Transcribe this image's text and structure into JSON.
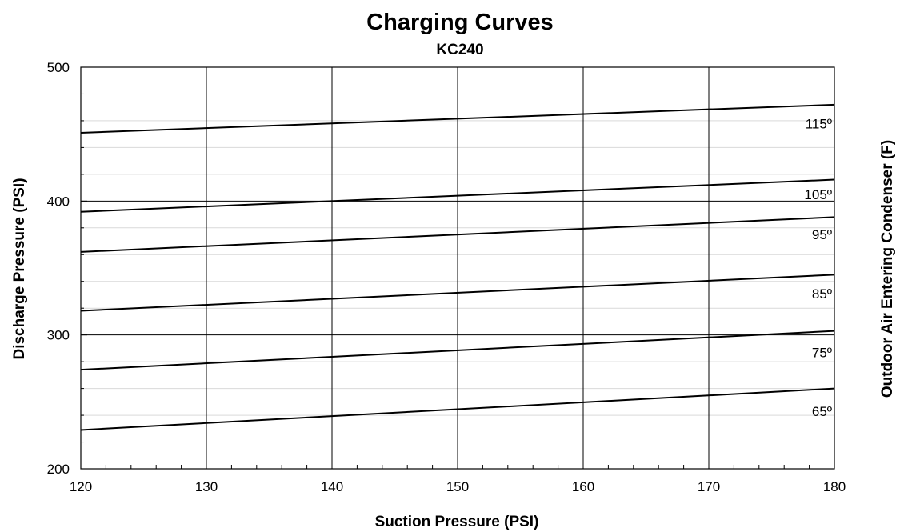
{
  "chart_data": {
    "type": "line",
    "title": "Charging Curves",
    "subtitle": "KC240",
    "xlabel": "Suction Pressure (PSI)",
    "ylabel": "Discharge Pressure (PSI)",
    "y2label": "Outdoor Air Entering Condenser (F)",
    "xlim": [
      120,
      180
    ],
    "ylim": [
      200,
      500
    ],
    "x_ticks": [
      120,
      130,
      140,
      150,
      160,
      170,
      180
    ],
    "x_tick_labels": [
      "120",
      "130",
      "140",
      "150",
      "160",
      "170",
      "180"
    ],
    "y_ticks": [
      200,
      300,
      400,
      500
    ],
    "y_tick_labels": [
      "200",
      "300",
      "400",
      "500"
    ],
    "grid": true,
    "legend": "none",
    "series": [
      {
        "name": "115º",
        "x": [
          120,
          180
        ],
        "y": [
          451,
          472
        ],
        "label_y": 458
      },
      {
        "name": "105º",
        "x": [
          120,
          180
        ],
        "y": [
          392,
          416
        ],
        "label_y": 405
      },
      {
        "name": "95º",
        "x": [
          120,
          180
        ],
        "y": [
          362,
          388
        ],
        "label_y": 375
      },
      {
        "name": "85º",
        "x": [
          120,
          180
        ],
        "y": [
          318,
          345
        ],
        "label_y": 331
      },
      {
        "name": "75º",
        "x": [
          120,
          180
        ],
        "y": [
          274,
          303
        ],
        "label_y": 287
      },
      {
        "name": "65º",
        "x": [
          120,
          180
        ],
        "y": [
          229,
          260
        ],
        "label_y": 243
      }
    ]
  }
}
